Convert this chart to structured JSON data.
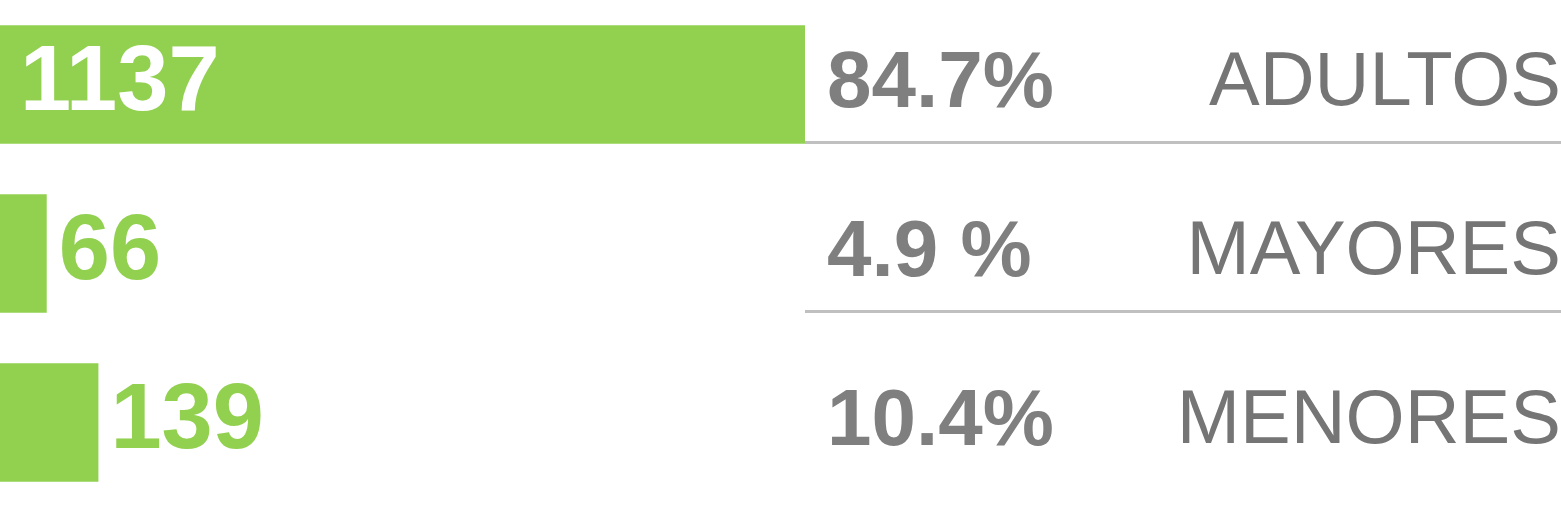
{
  "chart_data": {
    "type": "bar",
    "orientation": "horizontal",
    "categories": [
      "ADULTOS",
      "MAYORES",
      "MENORES"
    ],
    "values": [
      1137,
      66,
      139
    ],
    "color": "#92d050",
    "data_labels": true,
    "annotations": [
      "84.7%",
      "4.9 %",
      "10.4%"
    ],
    "grid": false,
    "legend": false
  }
}
